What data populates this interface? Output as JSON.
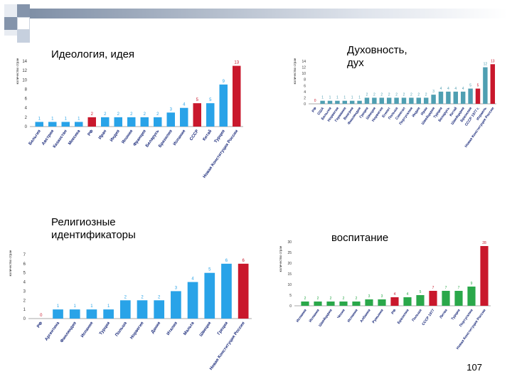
{
  "slide": {
    "page_number": "107"
  },
  "colors": {
    "blue": "#29a3e8",
    "red": "#c9182c",
    "green": "#2aa84a",
    "teal": "#4f9fb2",
    "deco": "#7f8fa6"
  },
  "chart_data": [
    {
      "type": "bar",
      "title": "Идеология, идея",
      "ylabel": "количество стран",
      "ylim": [
        0,
        14
      ],
      "yticks": [
        0,
        2,
        4,
        6,
        8,
        10,
        12,
        14
      ],
      "categories": [
        "Бельгия",
        "Австрия",
        "Казахстан",
        "Мексика",
        "РФ",
        "Иран",
        "Индия",
        "Япония",
        "Франция",
        "Беларусь",
        "Бразилия",
        "Испания",
        "СССР",
        "Китай",
        "Турция",
        "Новая Конституция России"
      ],
      "values": [
        1,
        1,
        1,
        1,
        2,
        2,
        2,
        2,
        2,
        2,
        3,
        4,
        5,
        5,
        9,
        13
      ],
      "bar_colors": [
        "blue",
        "blue",
        "blue",
        "blue",
        "red",
        "blue",
        "blue",
        "blue",
        "blue",
        "blue",
        "blue",
        "blue",
        "red",
        "blue",
        "blue",
        "red"
      ]
    },
    {
      "type": "bar",
      "title": "Духовность, дух",
      "ylabel": "количество стран",
      "ylim": [
        0,
        14
      ],
      "yticks": [
        0,
        2,
        4,
        6,
        8,
        10,
        12,
        14
      ],
      "categories": [
        "РФ",
        "США",
        "Бельгия",
        "Норвегия",
        "Германия",
        "Венгрия",
        "Финляндия",
        "Греция",
        "Швеция",
        "Норвегия",
        "Египет",
        "Польша",
        "Сенегал",
        "Португалия",
        "Индия",
        "Иран",
        "Швейцария",
        "Турция",
        "Беларусь",
        "Китай",
        "Швейцария",
        "Бразилия",
        "СССР 1977 г.",
        "Израиль",
        "Новая Конституция России"
      ],
      "values": [
        0,
        1,
        1,
        1,
        1,
        1,
        1,
        2,
        2,
        2,
        2,
        2,
        2,
        2,
        2,
        2,
        3,
        4,
        4,
        4,
        4,
        5,
        5,
        12,
        13
      ],
      "bar_colors": [
        "red",
        "teal",
        "teal",
        "teal",
        "teal",
        "teal",
        "teal",
        "teal",
        "teal",
        "teal",
        "teal",
        "teal",
        "teal",
        "teal",
        "teal",
        "teal",
        "teal",
        "teal",
        "teal",
        "teal",
        "teal",
        "teal",
        "red",
        "teal",
        "red"
      ]
    },
    {
      "type": "bar",
      "title": "Религиозные идентификаторы",
      "ylabel": "количество стран",
      "ylim": [
        0,
        7
      ],
      "yticks": [
        0,
        1,
        2,
        3,
        4,
        5,
        6,
        7
      ],
      "categories": [
        "РФ",
        "Аргентина",
        "Финляндия",
        "Испания",
        "Турция",
        "Польша",
        "Норвегия",
        "Дания",
        "Италия",
        "Мальта",
        "Швеция",
        "Греция",
        "Новая Конституция России"
      ],
      "values": [
        0,
        1,
        1,
        1,
        1,
        2,
        2,
        2,
        3,
        4,
        5,
        6,
        6
      ],
      "bar_colors": [
        "red",
        "blue",
        "blue",
        "blue",
        "blue",
        "blue",
        "blue",
        "blue",
        "blue",
        "blue",
        "blue",
        "blue",
        "red"
      ]
    },
    {
      "type": "bar",
      "title": "воспитание",
      "ylabel": "количество стран",
      "ylim": [
        0,
        30
      ],
      "yticks": [
        0,
        5,
        10,
        15,
        20,
        25,
        30
      ],
      "categories": [
        "Испания",
        "Испания",
        "Швейцария",
        "Чехия",
        "Испания",
        "Албания",
        "Румыния",
        "РФ",
        "Бразилия",
        "Польша",
        "СССР 1977",
        "Литва",
        "Турция",
        "Португалия",
        "Новая Конституция России"
      ],
      "values": [
        2,
        2,
        2,
        2,
        2,
        3,
        3,
        4,
        4,
        5,
        7,
        7,
        7,
        9,
        28
      ],
      "bar_colors": [
        "green",
        "green",
        "green",
        "green",
        "green",
        "green",
        "green",
        "red",
        "green",
        "green",
        "red",
        "green",
        "green",
        "green",
        "red"
      ]
    }
  ]
}
